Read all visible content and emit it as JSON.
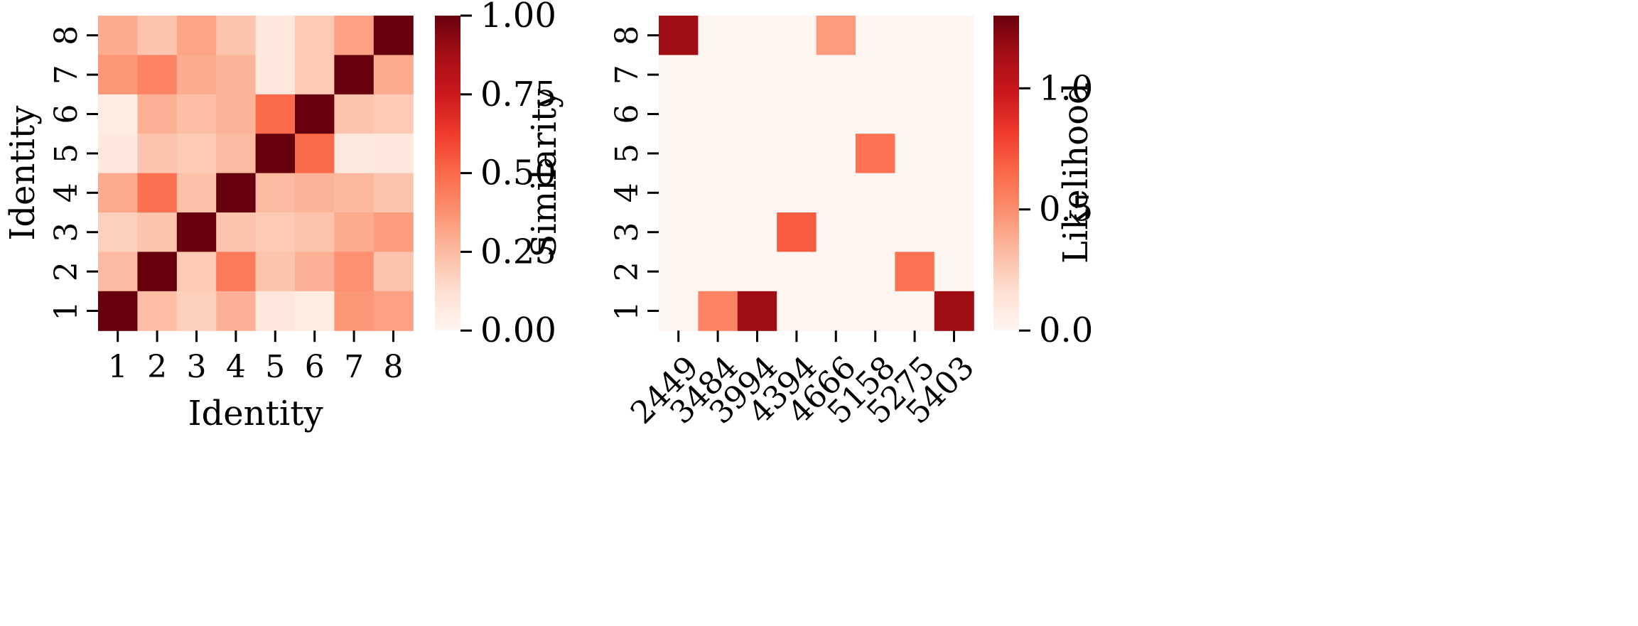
{
  "chart_data": [
    {
      "type": "heatmap",
      "title": "",
      "xlabel": "Identity",
      "ylabel": "Identity",
      "x_categories": [
        "1",
        "2",
        "3",
        "4",
        "5",
        "6",
        "7",
        "8"
      ],
      "y_categories": [
        "1",
        "2",
        "3",
        "4",
        "5",
        "6",
        "7",
        "8"
      ],
      "colorbar_label": "Similarity",
      "colorbar_range": [
        0,
        1
      ],
      "colorbar_ticks": [
        "0.00",
        "0.25",
        "0.50",
        "0.75",
        "1.00"
      ],
      "colormap": "Reds",
      "rows": [
        {
          "y": "8",
          "values": [
            0.3,
            0.22,
            0.32,
            0.22,
            0.08,
            0.2,
            0.33,
            1.0
          ]
        },
        {
          "y": "7",
          "values": [
            0.36,
            0.42,
            0.3,
            0.27,
            0.08,
            0.2,
            1.0,
            0.3
          ]
        },
        {
          "y": "6",
          "values": [
            0.05,
            0.28,
            0.24,
            0.27,
            0.5,
            1.0,
            0.22,
            0.2
          ]
        },
        {
          "y": "5",
          "values": [
            0.08,
            0.22,
            0.2,
            0.25,
            1.0,
            0.5,
            0.07,
            0.08
          ]
        },
        {
          "y": "4",
          "values": [
            0.3,
            0.48,
            0.23,
            1.0,
            0.25,
            0.27,
            0.26,
            0.22
          ]
        },
        {
          "y": "3",
          "values": [
            0.18,
            0.22,
            1.0,
            0.22,
            0.2,
            0.22,
            0.3,
            0.34
          ]
        },
        {
          "y": "2",
          "values": [
            0.25,
            1.0,
            0.2,
            0.45,
            0.22,
            0.28,
            0.38,
            0.22
          ]
        },
        {
          "y": "1",
          "values": [
            1.0,
            0.24,
            0.18,
            0.28,
            0.08,
            0.05,
            0.36,
            0.33
          ]
        }
      ]
    },
    {
      "type": "heatmap",
      "title": "",
      "xlabel": "",
      "ylabel": "",
      "x_categories": [
        "2449",
        "3484",
        "3994",
        "4394",
        "4666",
        "5158",
        "5275",
        "5403"
      ],
      "y_categories": [
        "1",
        "2",
        "3",
        "4",
        "5",
        "6",
        "7",
        "8"
      ],
      "colorbar_label": "Likelihood",
      "colorbar_range": [
        0,
        1.3
      ],
      "colorbar_ticks": [
        "0.0",
        "0.5",
        "1.0"
      ],
      "colormap": "Reds",
      "rows": [
        {
          "y": "8",
          "values": [
            1.15,
            0,
            0,
            0,
            0.45,
            0,
            0,
            0
          ]
        },
        {
          "y": "7",
          "values": [
            0,
            0,
            0,
            0,
            0,
            0,
            0,
            0
          ]
        },
        {
          "y": "6",
          "values": [
            0,
            0,
            0,
            0,
            0,
            0,
            0,
            0
          ]
        },
        {
          "y": "5",
          "values": [
            0,
            0,
            0,
            0,
            0,
            0.62,
            0,
            0
          ]
        },
        {
          "y": "4",
          "values": [
            0,
            0,
            0,
            0,
            0,
            0,
            0,
            0
          ]
        },
        {
          "y": "3",
          "values": [
            0,
            0,
            0,
            0.7,
            0,
            0,
            0,
            0
          ]
        },
        {
          "y": "2",
          "values": [
            0,
            0,
            0,
            0,
            0,
            0,
            0.62,
            0
          ]
        },
        {
          "y": "1",
          "values": [
            0,
            0.55,
            1.15,
            0,
            0,
            0,
            0,
            1.15
          ]
        }
      ]
    }
  ]
}
